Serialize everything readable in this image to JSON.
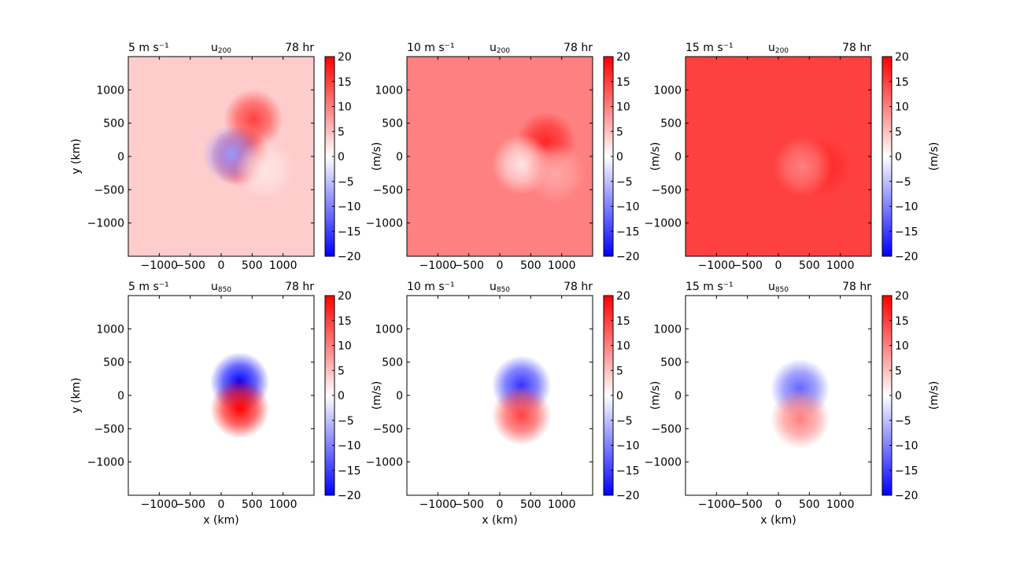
{
  "colorbar": {
    "label": "(m/s)",
    "min": -20,
    "max": 20,
    "ticks": [
      "20",
      "15",
      "10",
      "5",
      "0",
      "−5",
      "−10",
      "−15",
      "−20"
    ],
    "colors": {
      "neg": "#0000ff",
      "zero": "#ffffff",
      "pos": "#ff0000"
    }
  },
  "chart_data": [
    {
      "type": "heatmap",
      "panel": "top-left",
      "left_title": "5 m s⁻¹",
      "center_title_base": "u",
      "center_title_sub": "200",
      "right_title": "78 hr",
      "xlabel": "",
      "ylabel": "y (km)",
      "xlim": [
        -1500,
        1500
      ],
      "ylim": [
        -1500,
        1500
      ],
      "xticks": [
        "−1000",
        "−500",
        "0",
        "500",
        "1000"
      ],
      "yticks": [
        "1000",
        "500",
        "0",
        "−500",
        "−1000"
      ],
      "background_value": 4,
      "features": [
        {
          "x": 520,
          "y": 560,
          "value": 15
        },
        {
          "x": 300,
          "y": 0,
          "value": 20
        },
        {
          "x": 180,
          "y": 30,
          "value": -8
        },
        {
          "x": 700,
          "y": -200,
          "value": 2
        }
      ]
    },
    {
      "type": "heatmap",
      "panel": "top-middle",
      "left_title": "10 m s⁻¹",
      "center_title_base": "u",
      "center_title_sub": "200",
      "right_title": "78 hr",
      "xlabel": "",
      "ylabel": "",
      "xlim": [
        -1500,
        1500
      ],
      "ylim": [
        -1500,
        1500
      ],
      "xticks": [
        "−1000",
        "−500",
        "0",
        "500",
        "1000"
      ],
      "yticks": [
        "1000",
        "500",
        "0",
        "−500",
        "−1000"
      ],
      "background_value": 10,
      "features": [
        {
          "x": 750,
          "y": 220,
          "value": 17
        },
        {
          "x": 350,
          "y": -120,
          "value": 2
        },
        {
          "x": 900,
          "y": -250,
          "value": 7
        }
      ]
    },
    {
      "type": "heatmap",
      "panel": "top-right",
      "left_title": "15 m s⁻¹",
      "center_title_base": "u",
      "center_title_sub": "200",
      "right_title": "78 hr",
      "xlabel": "",
      "ylabel": "",
      "xlim": [
        -1500,
        1500
      ],
      "ylim": [
        -1500,
        1500
      ],
      "xticks": [
        "−1000",
        "−500",
        "0",
        "500",
        "1000"
      ],
      "yticks": [
        "1000",
        "500",
        "0",
        "−500",
        "−1000"
      ],
      "background_value": 15,
      "features": [
        {
          "x": 700,
          "y": -150,
          "value": 17
        },
        {
          "x": 400,
          "y": -150,
          "value": 10
        }
      ]
    },
    {
      "type": "heatmap",
      "panel": "bottom-left",
      "left_title": "5 m s⁻¹",
      "center_title_base": "u",
      "center_title_sub": "850",
      "right_title": "78 hr",
      "xlabel": "x (km)",
      "ylabel": "y (km)",
      "xlim": [
        -1500,
        1500
      ],
      "ylim": [
        -1500,
        1500
      ],
      "xticks": [
        "−1000",
        "−500",
        "0",
        "500",
        "1000"
      ],
      "yticks": [
        "1000",
        "500",
        "0",
        "−500",
        "−1000"
      ],
      "background_value": 0,
      "features": [
        {
          "x": 300,
          "y": 200,
          "value": -20
        },
        {
          "x": 300,
          "y": -200,
          "value": 20
        }
      ]
    },
    {
      "type": "heatmap",
      "panel": "bottom-middle",
      "left_title": "10 m s⁻¹",
      "center_title_base": "u",
      "center_title_sub": "850",
      "right_title": "78 hr",
      "xlabel": "x (km)",
      "ylabel": "",
      "xlim": [
        -1500,
        1500
      ],
      "ylim": [
        -1500,
        1500
      ],
      "xticks": [
        "−1000",
        "−500",
        "0",
        "500",
        "1000"
      ],
      "yticks": [
        "1000",
        "500",
        "0",
        "−500",
        "−1000"
      ],
      "background_value": 0,
      "features": [
        {
          "x": 350,
          "y": 150,
          "value": -16
        },
        {
          "x": 350,
          "y": -300,
          "value": 15
        }
      ]
    },
    {
      "type": "heatmap",
      "panel": "bottom-right",
      "left_title": "15 m s⁻¹",
      "center_title_base": "u",
      "center_title_sub": "850",
      "right_title": "78 hr",
      "xlabel": "x (km)",
      "ylabel": "",
      "xlim": [
        -1500,
        1500
      ],
      "ylim": [
        -1500,
        1500
      ],
      "xticks": [
        "−1000",
        "−500",
        "0",
        "500",
        "1000"
      ],
      "yticks": [
        "1000",
        "500",
        "0",
        "−500",
        "−1000"
      ],
      "background_value": 0,
      "features": [
        {
          "x": 350,
          "y": 100,
          "value": -12
        },
        {
          "x": 350,
          "y": -350,
          "value": 10
        }
      ]
    }
  ]
}
